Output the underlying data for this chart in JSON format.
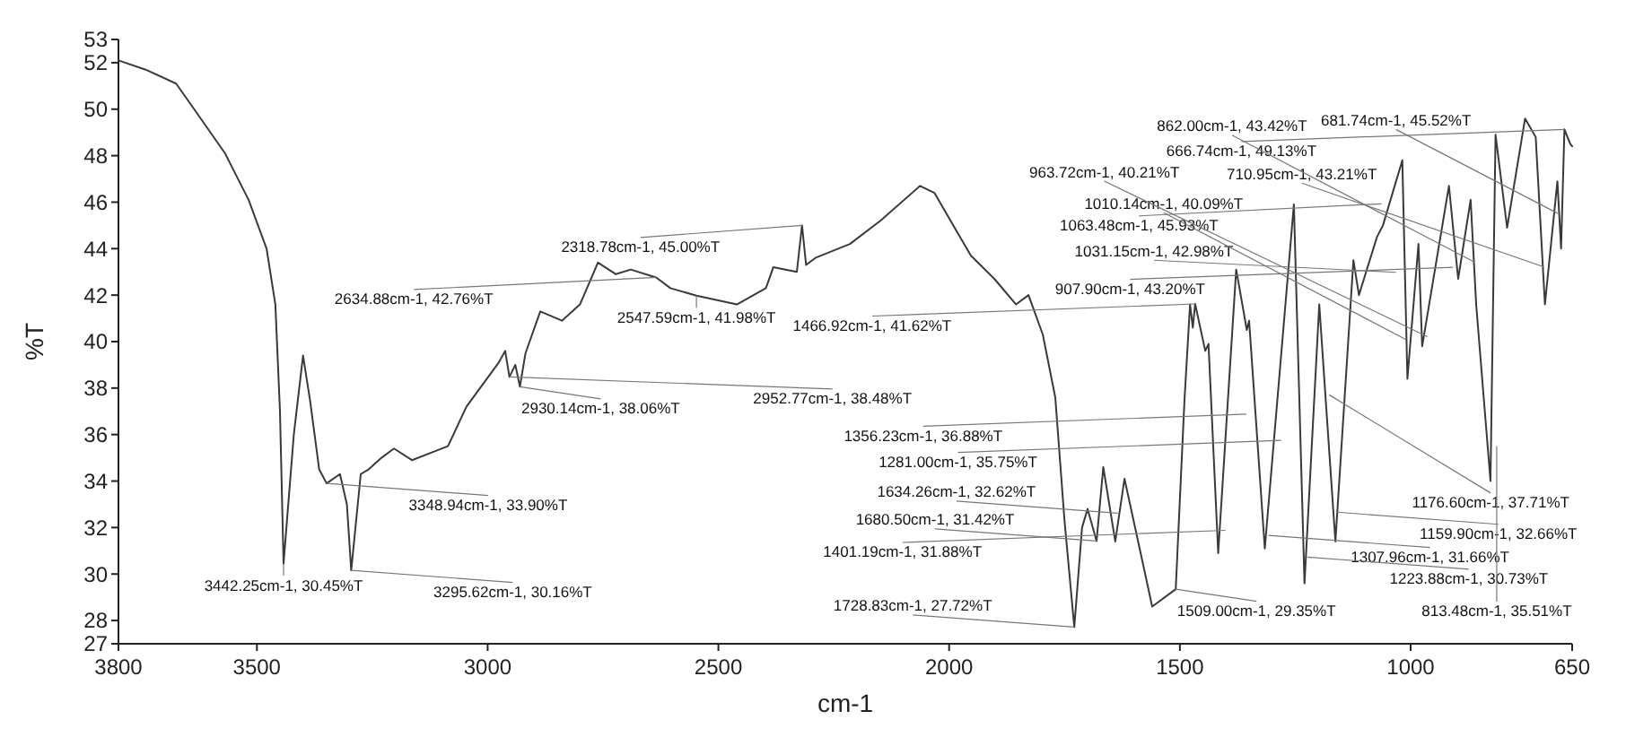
{
  "chart_data": {
    "type": "line",
    "xlabel": "cm-1",
    "ylabel": "%T",
    "xlim": [
      3800,
      650
    ],
    "ylim": [
      27,
      53
    ],
    "xticks": [
      3800,
      3500,
      3000,
      2500,
      2000,
      1500,
      1000,
      650
    ],
    "yticks": [
      27,
      28,
      30,
      32,
      34,
      36,
      38,
      40,
      42,
      44,
      46,
      48,
      50,
      52,
      53
    ],
    "x": [
      3800,
      3741,
      3675,
      3636,
      3569,
      3518,
      3479,
      3460,
      3450,
      3442.25,
      3420,
      3400,
      3385,
      3365,
      3348.94,
      3320,
      3305,
      3295.62,
      3275,
      3258,
      3230,
      3203,
      3164,
      3086,
      3046,
      2976,
      2962,
      2952.77,
      2940,
      2930.14,
      2918,
      2886,
      2839,
      2800,
      2761,
      2722,
      2690,
      2634.88,
      2604,
      2547.59,
      2460,
      2397,
      2381,
      2330,
      2318.78,
      2310,
      2290,
      2215,
      2149,
      2063,
      2032,
      1953,
      1902,
      1855,
      1828,
      1797,
      1770,
      1750,
      1728.83,
      1712,
      1700,
      1680.5,
      1666,
      1640,
      1620,
      1560,
      1509,
      1490,
      1478,
      1472,
      1466.92,
      1445,
      1438,
      1417,
      1378,
      1355,
      1350,
      1316,
      1253,
      1230,
      1198,
      1183,
      1163,
      1124,
      1112,
      1073,
      1060,
      1018,
      1007,
      983,
      975,
      917,
      897,
      870,
      858,
      827,
      816,
      791,
      752,
      729,
      709,
      682,
      674,
      666.74,
      654,
      650
    ],
    "series": [
      {
        "color": "#3a3a3a",
        "values": [
          52.1,
          51.7,
          51.1,
          50,
          48.1,
          46.1,
          44,
          41.6,
          37,
          30.45,
          36,
          39.4,
          37.5,
          34.5,
          33.9,
          34.3,
          33,
          30.16,
          34.3,
          34.5,
          35,
          35.4,
          34.9,
          35.5,
          37.2,
          39.1,
          39.6,
          38.48,
          39,
          38.06,
          39.5,
          41.3,
          40.9,
          41.6,
          43.4,
          42.9,
          43.1,
          42.76,
          42.3,
          41.98,
          41.6,
          42.3,
          43.2,
          43,
          45,
          43.3,
          43.6,
          44.2,
          45.2,
          46.7,
          46.4,
          43.7,
          42.7,
          41.6,
          42,
          40.3,
          37.6,
          32.3,
          27.72,
          32,
          32.8,
          31.42,
          34.6,
          31.4,
          34.1,
          28.6,
          29.35,
          37.5,
          41.6,
          40.6,
          41.62,
          39.6,
          39.9,
          30.9,
          43.1,
          40.5,
          40.9,
          31.1,
          45.9,
          29.6,
          41.6,
          37.2,
          31.4,
          43.5,
          42,
          44.5,
          45,
          47.8,
          38.4,
          44.2,
          39.8,
          46.7,
          42.7,
          46.1,
          41.6,
          34,
          48.9,
          44.9,
          49.6,
          48.8,
          41.6,
          46.9,
          44,
          49.13,
          48.5,
          48.4
        ]
      }
    ],
    "annotations": [
      {
        "text": "3348.94cm-1, 33.90%T",
        "x": 3348.94,
        "y": 33.9
      },
      {
        "text": "3442.25cm-1, 30.45%T",
        "x": 3442.25,
        "y": 30.45
      },
      {
        "text": "3295.62cm-1, 30.16%T",
        "x": 3295.62,
        "y": 30.16
      },
      {
        "text": "2930.14cm-1, 38.06%T",
        "x": 2930.14,
        "y": 38.06
      },
      {
        "text": "2952.77cm-1, 38.48%T",
        "x": 2952.77,
        "y": 38.48
      },
      {
        "text": "2634.88cm-1, 42.76%T",
        "x": 2634.88,
        "y": 42.76
      },
      {
        "text": "2547.59cm-1, 41.98%T",
        "x": 2547.59,
        "y": 41.98
      },
      {
        "text": "2318.78cm-1, 45.00%T",
        "x": 2318.78,
        "y": 45
      },
      {
        "text": "1466.92cm-1, 41.62%T",
        "x": 1466.92,
        "y": 41.62
      },
      {
        "text": "1281.00cm-1, 35.75%T",
        "x": 1281,
        "y": 35.75
      },
      {
        "text": "1356.23cm-1, 36.88%T",
        "x": 1356.23,
        "y": 36.88
      },
      {
        "text": "1176.60cm-1, 37.71%T",
        "x": 1176.6,
        "y": 37.71
      },
      {
        "text": "1307.96cm-1, 31.66%T",
        "x": 1307.96,
        "y": 31.66
      },
      {
        "text": "1159.90cm-1, 32.66%T",
        "x": 1159.9,
        "y": 32.66
      },
      {
        "text": "1401.19cm-1, 31.88%T",
        "x": 1401.19,
        "y": 31.88
      },
      {
        "text": "1223.88cm-1, 30.73%T",
        "x": 1223.88,
        "y": 30.73
      },
      {
        "text": "1634.26cm-1, 32.62%T",
        "x": 1634.26,
        "y": 32.62
      },
      {
        "text": "1680.50cm-1, 31.42%T",
        "x": 1680.5,
        "y": 31.42
      },
      {
        "text": "1728.83cm-1, 27.72%T",
        "x": 1728.83,
        "y": 27.72
      },
      {
        "text": "1509.00cm-1, 29.35%T",
        "x": 1509,
        "y": 29.35
      },
      {
        "text": "1063.48cm-1, 45.93%T",
        "x": 1063.48,
        "y": 45.93
      },
      {
        "text": "907.90cm-1, 43.20%T",
        "x": 907.9,
        "y": 43.2
      },
      {
        "text": "1031.15cm-1, 42.98%T",
        "x": 1031.15,
        "y": 42.98
      },
      {
        "text": "1010.14cm-1, 40.09%T",
        "x": 1010.14,
        "y": 40.09
      },
      {
        "text": "710.95cm-1, 43.21%T",
        "x": 710.95,
        "y": 43.21
      },
      {
        "text": "666.74cm-1, 49.13%T",
        "x": 666.74,
        "y": 49.13
      },
      {
        "text": "681.74cm-1, 45.52%T",
        "x": 681.74,
        "y": 45.52
      },
      {
        "text": "813.48cm-1, 35.51%T",
        "x": 813.48,
        "y": 35.51
      },
      {
        "text": "963.72cm-1, 40.21%T",
        "x": 963.72,
        "y": 40.21
      },
      {
        "text": "862.00cm-1, 43.42%T",
        "x": 862,
        "y": 43.42
      }
    ]
  }
}
